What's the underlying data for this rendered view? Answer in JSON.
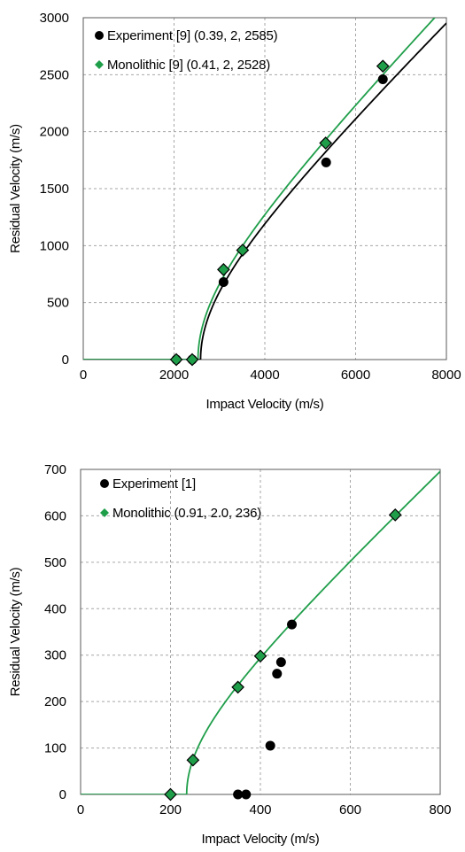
{
  "chart_data": [
    {
      "type": "scatter",
      "xlabel": "Impact Velocity (m/s)",
      "ylabel": "Residual Velocity (m/s)",
      "xlim": [
        0,
        8000
      ],
      "ylim": [
        0,
        3000
      ],
      "xticks": [
        0,
        2000,
        4000,
        6000,
        8000
      ],
      "yticks": [
        0,
        500,
        1000,
        1500,
        2000,
        2500,
        3000
      ],
      "xtick_labels": [
        "0",
        "2000",
        "4000",
        "6000",
        "8000"
      ],
      "ytick_labels": [
        "0",
        "500",
        "1000",
        "1500",
        "2000",
        "2500",
        "3000"
      ],
      "grid": "dashed",
      "legend_position": "top-left",
      "series": [
        {
          "name": "Experiment [9] (0.39, 2, 2585)",
          "marker": "circle",
          "color": "#000000",
          "points": [
            [
              2050,
              0
            ],
            [
              2400,
              0
            ],
            [
              3090,
              680
            ],
            [
              5350,
              1730
            ],
            [
              6600,
              2460
            ]
          ]
        },
        {
          "name": "Monolithic [9] (0.41, 2, 2528)",
          "marker": "diamond",
          "color": "#1f9e4a",
          "points": [
            [
              2050,
              0
            ],
            [
              2400,
              0
            ],
            [
              3090,
              790
            ],
            [
              3510,
              960
            ],
            [
              5340,
              1900
            ],
            [
              6600,
              2575
            ]
          ]
        }
      ],
      "curves": [
        {
          "series": "Experiment [9] (0.39, 2, 2585)",
          "a": 0.39,
          "p": 2,
          "vbl": 2585,
          "color": "#000000",
          "x_end": 8000
        },
        {
          "series": "Monolithic [9] (0.41, 2, 2528)",
          "a": 0.41,
          "p": 2,
          "vbl": 2528,
          "color": "#1f9e4a",
          "x_end": 8000
        }
      ]
    },
    {
      "type": "scatter",
      "xlabel": "Impact Velocity (m/s)",
      "ylabel": "Residual Velocity (m/s)",
      "xlim": [
        0,
        800
      ],
      "ylim": [
        0,
        700
      ],
      "xticks": [
        0,
        200,
        400,
        600,
        800
      ],
      "yticks": [
        0,
        100,
        200,
        300,
        400,
        500,
        600,
        700
      ],
      "xtick_labels": [
        "0",
        "200",
        "400",
        "600",
        "800"
      ],
      "ytick_labels": [
        "0",
        "100",
        "200",
        "300",
        "400",
        "500",
        "600",
        "700"
      ],
      "grid": "dashed",
      "legend_position": "top-left",
      "series": [
        {
          "name": "Experiment [1]",
          "marker": "circle",
          "color": "#000000",
          "points": [
            [
              350,
              0
            ],
            [
              368,
              0
            ],
            [
              422,
              105
            ],
            [
              437,
              260
            ],
            [
              446,
              285
            ],
            [
              470,
              366
            ]
          ]
        },
        {
          "name": "Monolithic (0.91, 2.0, 236)",
          "marker": "diamond",
          "color": "#1f9e4a",
          "points": [
            [
              200,
              0
            ],
            [
              250,
              74
            ],
            [
              350,
              231
            ],
            [
              400,
              298
            ],
            [
              700,
              602
            ]
          ]
        }
      ],
      "curves": [
        {
          "series": "Monolithic (0.91, 2.0, 236)",
          "a": 0.91,
          "p": 2.0,
          "vbl": 236,
          "color": "#1f9e4a",
          "x_end": 800
        }
      ]
    }
  ]
}
